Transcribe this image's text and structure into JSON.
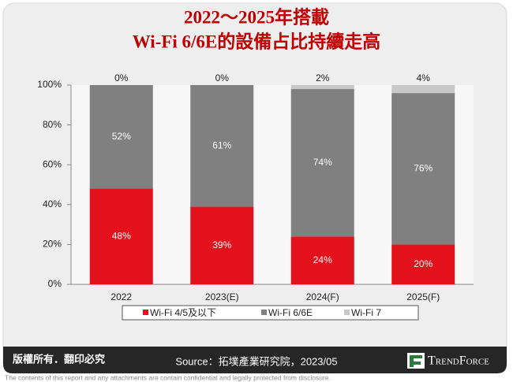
{
  "chart_data": {
    "type": "stacked-bar",
    "title": [
      "2022～2025年搭載",
      "Wi-Fi 6/6E的設備占比持續走高"
    ],
    "categories": [
      "2022",
      "2023(E)",
      "2024(F)",
      "2025(F)"
    ],
    "series": [
      {
        "name": "Wi-Fi 4/5及以下",
        "color": "#e3111b",
        "values": [
          48,
          39,
          24,
          20
        ],
        "value_labels": [
          "48%",
          "39%",
          "24%",
          "20%"
        ]
      },
      {
        "name": "Wi-Fi 6/6E",
        "color": "#808080",
        "values": [
          52,
          61,
          74,
          76
        ],
        "value_labels": [
          "52%",
          "61%",
          "74%",
          "76%"
        ]
      },
      {
        "name": "Wi-Fi 7",
        "color": "#c8c8c8",
        "values": [
          0,
          0,
          2,
          4
        ],
        "value_labels": [
          "0%",
          "0%",
          "2%",
          "4%"
        ]
      }
    ],
    "ylim": [
      0,
      100
    ],
    "yticks": [
      {
        "value": 0,
        "label": "0%"
      },
      {
        "value": 20,
        "label": "20%"
      },
      {
        "value": 40,
        "label": "40%"
      },
      {
        "value": 60,
        "label": "60%"
      },
      {
        "value": 80,
        "label": "80%"
      },
      {
        "value": 100,
        "label": "100%"
      }
    ],
    "legend": "bottom"
  },
  "footer": {
    "copyright": "版權所有．翻印必究",
    "source": "Source：拓墣產業研究院，2023/05",
    "logo": "TrendForce",
    "disclaimer": "The contents of this report and any attachments are contain confidential and legally protected from disclosure."
  }
}
